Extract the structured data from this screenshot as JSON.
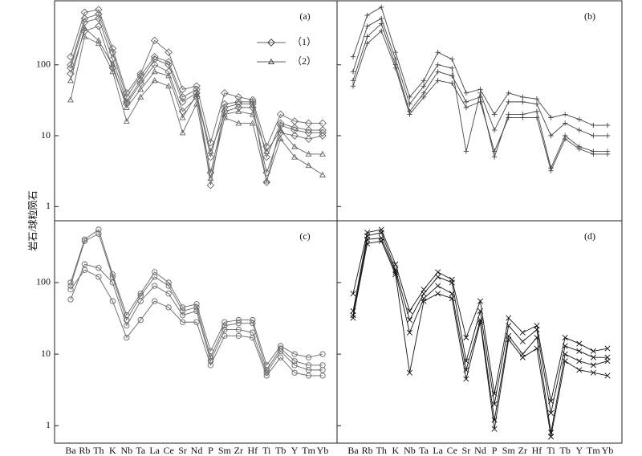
{
  "chart_data": [
    {
      "type": "line",
      "label": "(a)",
      "ylabel": "岩石/球粒陨石",
      "log_scale": true,
      "ylim": [
        0.63,
        800
      ],
      "yticks": [
        1,
        10,
        100
      ],
      "ytick_labels": true,
      "color": "#666666",
      "legend": [
        {
          "label": "（1）",
          "marker": "diamond"
        },
        {
          "label": "（2）",
          "marker": "triangle"
        }
      ],
      "series": [
        {
          "marker": "diamond",
          "values": [
            130,
            550,
            600,
            170,
            40,
            75,
            220,
            150,
            45,
            50,
            8,
            40,
            35,
            32,
            7,
            20,
            16,
            15,
            15
          ]
        },
        {
          "marker": "diamond",
          "values": [
            90,
            400,
            450,
            120,
            30,
            60,
            120,
            100,
            30,
            40,
            5,
            28,
            30,
            30,
            5,
            15,
            13,
            12,
            12
          ]
        },
        {
          "marker": "diamond",
          "values": [
            75,
            300,
            350,
            90,
            28,
            55,
            100,
            80,
            22,
            35,
            3,
            22,
            25,
            25,
            3,
            11,
            10,
            9,
            10
          ]
        },
        {
          "marker": "diamond",
          "values": [
            100,
            450,
            520,
            150,
            35,
            70,
            130,
            110,
            35,
            45,
            2,
            25,
            28,
            28,
            2.2,
            14,
            12,
            11,
            11
          ]
        },
        {
          "marker": "triangle",
          "values": [
            32,
            250,
            200,
            80,
            16,
            35,
            60,
            50,
            11,
            28,
            2.5,
            18,
            15,
            15,
            2.3,
            9,
            5,
            3.8,
            2.8
          ]
        },
        {
          "marker": "triangle",
          "values": [
            60,
            330,
            220,
            100,
            25,
            45,
            80,
            70,
            18,
            38,
            6,
            20,
            22,
            20,
            6,
            12,
            7,
            5.5,
            5.5
          ]
        }
      ]
    },
    {
      "type": "line",
      "label": "(b)",
      "log_scale": true,
      "ylim": [
        0.63,
        800
      ],
      "yticks": [
        1,
        10,
        100
      ],
      "ytick_labels": false,
      "color": "#444444",
      "series": [
        {
          "marker": "plus",
          "values": [
            130,
            500,
            650,
            150,
            35,
            60,
            150,
            120,
            40,
            45,
            20,
            40,
            35,
            33,
            18,
            20,
            17,
            14,
            14
          ]
        },
        {
          "marker": "plus",
          "values": [
            80,
            350,
            450,
            120,
            28,
            50,
            100,
            90,
            6,
            40,
            12,
            30,
            30,
            28,
            10,
            15,
            12,
            10,
            10
          ]
        },
        {
          "marker": "plus",
          "values": [
            60,
            250,
            380,
            100,
            22,
            40,
            80,
            70,
            30,
            35,
            5,
            20,
            20,
            22,
            3.5,
            10,
            7,
            6,
            6
          ]
        },
        {
          "marker": "plus",
          "values": [
            50,
            200,
            300,
            90,
            20,
            35,
            60,
            55,
            25,
            30,
            6,
            18,
            18,
            18,
            3.2,
            9,
            6.5,
            5.5,
            5.5
          ]
        }
      ]
    },
    {
      "type": "line",
      "label": "(c)",
      "log_scale": true,
      "ylim": [
        0.57,
        730
      ],
      "yticks": [
        1,
        10,
        100
      ],
      "ytick_labels": true,
      "color": "#666666",
      "categories": [
        "Ba",
        "Rb",
        "Th",
        "K",
        "Nb",
        "Ta",
        "La",
        "Ce",
        "Sr",
        "Nd",
        "P",
        "Sm",
        "Zr",
        "Hf",
        "Ti",
        "Tb",
        "Y",
        "Tm",
        "Yb"
      ],
      "series": [
        {
          "marker": "circle",
          "values": [
            100,
            400,
            550,
            130,
            35,
            70,
            140,
            100,
            45,
            50,
            11,
            28,
            30,
            30,
            7,
            13,
            10,
            9,
            10
          ]
        },
        {
          "marker": "circle",
          "values": [
            90,
            380,
            480,
            120,
            30,
            65,
            120,
            90,
            40,
            45,
            9,
            25,
            27,
            27,
            6,
            12,
            8,
            7,
            7
          ]
        },
        {
          "marker": "circle",
          "values": [
            58,
            180,
            160,
            100,
            25,
            55,
            90,
            70,
            35,
            40,
            8,
            22,
            22,
            20,
            5.5,
            11,
            7,
            6,
            6
          ]
        },
        {
          "marker": "circle",
          "values": [
            80,
            150,
            120,
            55,
            17,
            30,
            55,
            45,
            28,
            28,
            7,
            18,
            18,
            17,
            5,
            9,
            5.5,
            5,
            5
          ]
        }
      ]
    },
    {
      "type": "line",
      "label": "(d)",
      "log_scale": true,
      "ylim": [
        0.57,
        730
      ],
      "yticks": [
        1,
        10,
        100
      ],
      "ytick_labels": false,
      "color": "#111111",
      "categories": [
        "Ba",
        "Rb",
        "Th",
        "K",
        "Nb",
        "Ta",
        "La",
        "Ce",
        "Sr",
        "Nd",
        "P",
        "Sm",
        "Zr",
        "Hf",
        "Ti",
        "Tb",
        "Y",
        "Tm",
        "Yb"
      ],
      "series": [
        {
          "marker": "cross",
          "values": [
            70,
            500,
            550,
            180,
            40,
            80,
            140,
            110,
            17,
            55,
            2.8,
            32,
            20,
            25,
            2.2,
            17,
            14,
            11,
            12
          ]
        },
        {
          "marker": "cross",
          "values": [
            40,
            450,
            500,
            150,
            30,
            70,
            120,
            100,
            8,
            40,
            2,
            25,
            15,
            22,
            1.5,
            13,
            11,
            9,
            9
          ]
        },
        {
          "marker": "cross",
          "values": [
            35,
            400,
            420,
            140,
            20,
            60,
            90,
            70,
            6,
            30,
            1.2,
            18,
            10,
            17,
            0.8,
            10,
            8,
            7,
            8
          ]
        },
        {
          "marker": "cross",
          "values": [
            32,
            350,
            380,
            130,
            5.5,
            55,
            70,
            60,
            4.5,
            28,
            0.9,
            16,
            9,
            12,
            0.7,
            8,
            6,
            5.5,
            5
          ]
        }
      ]
    }
  ]
}
